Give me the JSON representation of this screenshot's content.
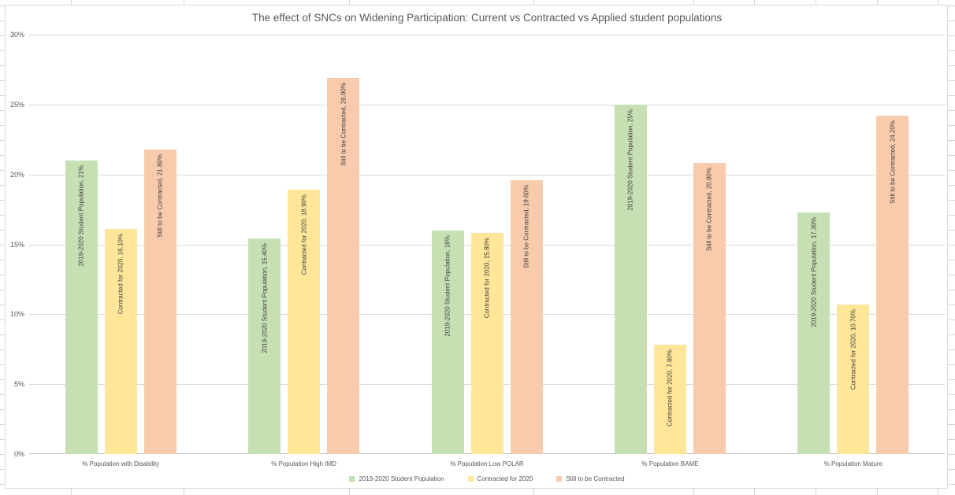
{
  "chart_data": {
    "type": "bar",
    "title": "The effect of SNCs on Widening Participation: Current vs Contracted vs Applied student populations",
    "categories": [
      "% Population with Disability",
      "% Population High IMD",
      "% Population Low POLAR",
      "% Population BAME",
      "% Population Mature"
    ],
    "series": [
      {
        "name": "2019-2020 Student Population",
        "color": "#c6e0b4",
        "values": [
          21,
          15.4,
          16,
          25,
          17.3
        ],
        "point_labels": [
          "2019-2020 Student Population, 21%",
          "2019-2020 Student Population, 15.40%",
          "2019-2020 Student Population, 16%",
          "2019-2020 Student Population, 25%",
          "2019-2020 Student Population, 17.30%"
        ]
      },
      {
        "name": "Contracted for 2020",
        "color": "#ffe699",
        "values": [
          16.1,
          18.9,
          15.8,
          7.8,
          10.7
        ],
        "point_labels": [
          "Contracted for 2020, 16.10%",
          "Contracted for 2020, 18.90%",
          "Contracted for 2020, 15.80%",
          "Contracted for 2020, 7.80%",
          "Contracted for 2020, 10.70%"
        ]
      },
      {
        "name": "Still to be Contracted",
        "color": "#f8cbad",
        "values": [
          21.8,
          26.9,
          19.6,
          20.8,
          24.2
        ],
        "point_labels": [
          "Still to be Contracted, 21.80%",
          "Still to be Contracted, 26.90%",
          "Still to be Contracted, 19.60%",
          "Still to be Contracted, 20.80%",
          "Still to be Contracted, 24.20%"
        ]
      }
    ],
    "y_ticks": [
      "0%",
      "5%",
      "10%",
      "15%",
      "20%",
      "25%",
      "30%"
    ],
    "ylim": [
      0,
      30
    ],
    "grid": true,
    "legend_position": "bottom",
    "legend": [
      "2019-2020 Student Population",
      "Contracted for 2020",
      "Still to be Contracted"
    ]
  },
  "colors": {
    "series_green": "#c6e0b4",
    "series_yellow": "#ffe699",
    "series_orange": "#f8cbad",
    "gridline": "#d9d9d9",
    "axis_text": "#595959",
    "data_label_text": "#404040",
    "chart_border": "#d9d9d9",
    "sheet_gridline": "#d6d6d6"
  }
}
